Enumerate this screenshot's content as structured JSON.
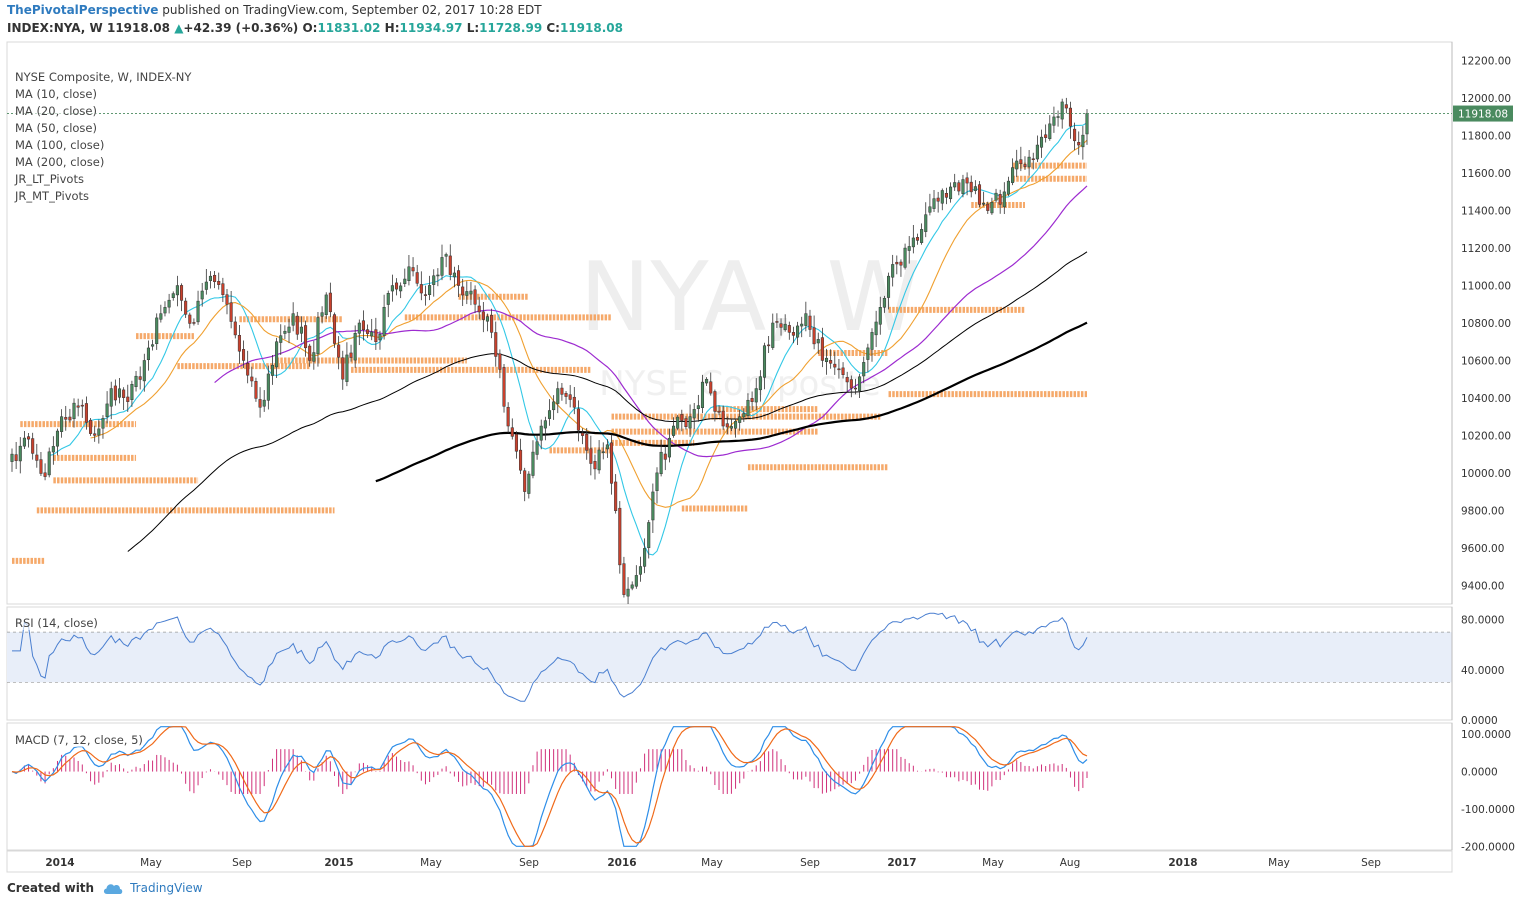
{
  "header": {
    "brand": "ThePivotalPerspective",
    "published": "published on TradingView.com, September 02, 2017 10:28 EDT",
    "symbol": "INDEX:NYA, W",
    "last": "11918.08",
    "change": "+42.39 (+0.36%)",
    "o_label": "O:",
    "o": "11831.02",
    "h_label": "H:",
    "h": "11934.97",
    "l_label": "L:",
    "l": "11728.99",
    "c_label": "C:",
    "c": "11918.08"
  },
  "legend": [
    "NYSE Composite, W, INDEX-NY",
    "MA (10, close)",
    "MA (20, close)",
    "MA (50, close)",
    "MA (100, close)",
    "MA (200, close)",
    "JR_LT_Pivots",
    "JR_MT_Pivots"
  ],
  "watermark": {
    "big": "NYA, W",
    "small": "NYSE Composite"
  },
  "rsi_label": "RSI (14, close)",
  "macd_label": "MACD (7, 12, close, 5)",
  "footer": {
    "created": "Created with",
    "tv": "TradingView"
  },
  "colors": {
    "up": "#4a8a5f",
    "down": "#c9412d",
    "ma10": "#33c8e6",
    "ma20": "#f0a030",
    "ma50": "#9d2bd0",
    "ma100": "#000000",
    "ma200": "#000000",
    "pivot": "#f5a05a",
    "rsi": "#4a7fd0",
    "macd": "#2e8ee8",
    "signal": "#f06a1a",
    "hist": "#d0307a"
  },
  "chart_data": [
    {
      "type": "candlestick",
      "title": "NYSE Composite, W, INDEX-NY",
      "ylim": [
        9300,
        12300
      ],
      "y_ticks": [
        "12200.00",
        "12000.00",
        "11800.00",
        "11600.00",
        "11400.00",
        "11200.00",
        "11000.00",
        "10800.00",
        "10600.00",
        "10400.00",
        "10200.00",
        "10000.00",
        "9800.00",
        "9600.00",
        "9400.00"
      ],
      "x_ticks": [
        "2014",
        "May",
        "Sep",
        "2015",
        "May",
        "Sep",
        "2016",
        "May",
        "Sep",
        "2017",
        "May",
        "Aug",
        "2018",
        "May",
        "Sep"
      ],
      "last_price_label": "11918.08",
      "close_anchors": [
        [
          0,
          10100
        ],
        [
          4,
          10180
        ],
        [
          8,
          9980
        ],
        [
          12,
          10300
        ],
        [
          16,
          10350
        ],
        [
          20,
          10200
        ],
        [
          24,
          10450
        ],
        [
          28,
          10380
        ],
        [
          32,
          10600
        ],
        [
          36,
          10850
        ],
        [
          40,
          11000
        ],
        [
          44,
          10800
        ],
        [
          48,
          11050
        ],
        [
          52,
          10900
        ],
        [
          56,
          10600
        ],
        [
          60,
          10350
        ],
        [
          64,
          10700
        ],
        [
          68,
          10850
        ],
        [
          72,
          10600
        ],
        [
          76,
          10950
        ],
        [
          80,
          10500
        ],
        [
          84,
          10800
        ],
        [
          88,
          10700
        ],
        [
          92,
          11000
        ],
        [
          96,
          11100
        ],
        [
          100,
          10950
        ],
        [
          104,
          11150
        ],
        [
          108,
          11000
        ],
        [
          112,
          10900
        ],
        [
          116,
          10750
        ],
        [
          120,
          10250
        ],
        [
          124,
          9900
        ],
        [
          128,
          10250
        ],
        [
          132,
          10450
        ],
        [
          136,
          10350
        ],
        [
          140,
          10050
        ],
        [
          144,
          10150
        ],
        [
          148,
          9350
        ],
        [
          152,
          9500
        ],
        [
          156,
          10000
        ],
        [
          160,
          10250
        ],
        [
          164,
          10300
        ],
        [
          168,
          10500
        ],
        [
          172,
          10250
        ],
        [
          176,
          10300
        ],
        [
          180,
          10450
        ],
        [
          184,
          10800
        ],
        [
          188,
          10750
        ],
        [
          192,
          10850
        ],
        [
          196,
          10600
        ],
        [
          200,
          10550
        ],
        [
          204,
          10450
        ],
        [
          208,
          10750
        ],
        [
          212,
          11050
        ],
        [
          216,
          11200
        ],
        [
          220,
          11300
        ],
        [
          224,
          11450
        ],
        [
          228,
          11550
        ],
        [
          232,
          11500
        ],
        [
          236,
          11400
        ],
        [
          240,
          11500
        ],
        [
          244,
          11650
        ],
        [
          248,
          11750
        ],
        [
          252,
          11900
        ],
        [
          254,
          11980
        ],
        [
          256,
          11850
        ],
        [
          258,
          11750
        ],
        [
          260,
          11918
        ]
      ],
      "ma_periods": [
        10,
        20,
        50,
        100,
        200
      ],
      "pivot_levels": [
        {
          "y": 10260,
          "x": [
            2,
            30
          ]
        },
        {
          "y": 9800,
          "x": [
            6,
            78
          ]
        },
        {
          "y": 10730,
          "x": [
            30,
            44
          ]
        },
        {
          "y": 10570,
          "x": [
            40,
            72
          ]
        },
        {
          "y": 10820,
          "x": [
            55,
            80
          ]
        },
        {
          "y": 10600,
          "x": [
            64,
            110
          ]
        },
        {
          "y": 10550,
          "x": [
            82,
            140
          ]
        },
        {
          "y": 10830,
          "x": [
            95,
            145
          ]
        },
        {
          "y": 10940,
          "x": [
            108,
            125
          ]
        },
        {
          "y": 10080,
          "x": [
            10,
            30
          ]
        },
        {
          "y": 9960,
          "x": [
            10,
            45
          ]
        },
        {
          "y": 9530,
          "x": [
            0,
            8
          ]
        },
        {
          "y": 10120,
          "x": [
            130,
            145
          ]
        },
        {
          "y": 10160,
          "x": [
            145,
            165
          ]
        },
        {
          "y": 10220,
          "x": [
            145,
            195
          ]
        },
        {
          "y": 10300,
          "x": [
            145,
            210
          ]
        },
        {
          "y": 10340,
          "x": [
            170,
            195
          ]
        },
        {
          "y": 10030,
          "x": [
            178,
            212
          ]
        },
        {
          "y": 9810,
          "x": [
            162,
            178
          ]
        },
        {
          "y": 10640,
          "x": [
            195,
            212
          ]
        },
        {
          "y": 10420,
          "x": [
            212,
            260
          ]
        },
        {
          "y": 10870,
          "x": [
            212,
            245
          ]
        },
        {
          "y": 11430,
          "x": [
            232,
            245
          ]
        },
        {
          "y": 11570,
          "x": [
            242,
            260
          ]
        },
        {
          "y": 11640,
          "x": [
            242,
            260
          ]
        }
      ]
    },
    {
      "type": "line",
      "title": "RSI (14, close)",
      "ylim": [
        0,
        90
      ],
      "y_ticks": [
        "80.0000",
        "40.0000",
        "0.0000"
      ],
      "band": [
        30,
        70
      ]
    },
    {
      "type": "bar+line",
      "title": "MACD (7, 12, close, 5)",
      "ylim": [
        -210,
        130
      ],
      "y_ticks": [
        "100.0000",
        "0.0000",
        "-100.0000",
        "-200.0000"
      ]
    }
  ]
}
